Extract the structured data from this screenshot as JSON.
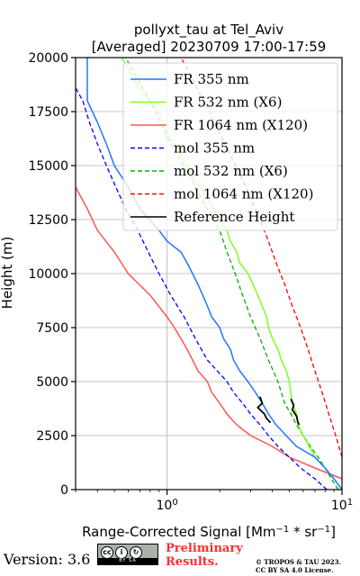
{
  "chart_data": {
    "type": "line",
    "title_line1": "pollyxt_tau at Tel_Aviv",
    "title_line2": "[Averaged] 20230709 17:00-17:59",
    "xlabel": "Range-Corrected Signal [Mm",
    "xlabel_exp1": "−1",
    "xlabel_mid": " * sr",
    "xlabel_exp2": "−1",
    "xlabel_end": "]",
    "ylabel": "Height (m)",
    "xscale": "log",
    "xlim": [
      0.3,
      10
    ],
    "ylim": [
      0,
      20000
    ],
    "yticks": [
      0,
      2500,
      5000,
      7500,
      10000,
      12500,
      15000,
      17500,
      20000
    ],
    "ytick_labels": [
      "0",
      "2500",
      "5000",
      "7500",
      "10000",
      "12500",
      "15000",
      "17500",
      "20000"
    ],
    "xtick_labels": [
      {
        "base": "10",
        "exp": "0",
        "value": 1
      },
      {
        "base": "10",
        "exp": "1",
        "value": 10
      }
    ],
    "grid": true,
    "legend_position": "top-right",
    "series": [
      {
        "name": "FR 355 nm",
        "style": "solid",
        "color": "#1f77ff",
        "points": [
          [
            10,
            0
          ],
          [
            9,
            500
          ],
          [
            8,
            1000
          ],
          [
            7,
            1500
          ],
          [
            5.5,
            2000
          ],
          [
            4.8,
            2500
          ],
          [
            4.2,
            3000
          ],
          [
            3.8,
            3500
          ],
          [
            3.5,
            4000
          ],
          [
            3.2,
            4500
          ],
          [
            2.9,
            5000
          ],
          [
            2.6,
            5500
          ],
          [
            2.4,
            6000
          ],
          [
            2.3,
            6500
          ],
          [
            2.1,
            7000
          ],
          [
            2.0,
            7500
          ],
          [
            1.8,
            8000
          ],
          [
            1.7,
            8500
          ],
          [
            1.6,
            9000
          ],
          [
            1.5,
            9500
          ],
          [
            1.4,
            10000
          ],
          [
            1.3,
            10500
          ],
          [
            1.2,
            11000
          ],
          [
            1.0,
            11500
          ],
          [
            0.9,
            12000
          ],
          [
            0.7,
            13000
          ],
          [
            0.6,
            14000
          ],
          [
            0.5,
            15000
          ],
          [
            0.45,
            16000
          ],
          [
            0.4,
            17000
          ],
          [
            0.35,
            18000
          ],
          [
            0.35,
            19000
          ],
          [
            0.35,
            20000
          ]
        ]
      },
      {
        "name": "FR 532 nm (X6)",
        "style": "solid",
        "color": "#7dff1f",
        "points": [
          [
            9,
            500
          ],
          [
            8,
            1000
          ],
          [
            7,
            1500
          ],
          [
            6.5,
            2000
          ],
          [
            6,
            2500
          ],
          [
            5.6,
            3000
          ],
          [
            5.5,
            3500
          ],
          [
            5.2,
            4000
          ],
          [
            5,
            5000
          ],
          [
            4.8,
            5500
          ],
          [
            4.5,
            6000
          ],
          [
            4.3,
            6500
          ],
          [
            4.0,
            7000
          ],
          [
            3.8,
            7500
          ],
          [
            3.7,
            8000
          ],
          [
            3.5,
            8500
          ],
          [
            3.3,
            9000
          ],
          [
            3.1,
            9500
          ],
          [
            2.9,
            10000
          ],
          [
            2.6,
            10500
          ],
          [
            2.5,
            11000
          ],
          [
            2.3,
            11500
          ],
          [
            2.2,
            12000
          ],
          [
            2.0,
            12500
          ],
          [
            1.7,
            13500
          ],
          [
            1.4,
            14500
          ],
          [
            1.2,
            15500
          ],
          [
            1.0,
            16500
          ],
          [
            0.9,
            17500
          ],
          [
            0.7,
            18500
          ],
          [
            0.6,
            19500
          ],
          [
            0.55,
            20000
          ]
        ]
      },
      {
        "name": "FR 1064 nm (X120)",
        "style": "solid",
        "color": "#ff5555",
        "points": [
          [
            10,
            500
          ],
          [
            7,
            1000
          ],
          [
            5,
            1500
          ],
          [
            4,
            2000
          ],
          [
            3,
            2500
          ],
          [
            2.5,
            3000
          ],
          [
            2.2,
            3500
          ],
          [
            2.0,
            4000
          ],
          [
            1.8,
            4500
          ],
          [
            1.7,
            5000
          ],
          [
            1.5,
            5500
          ],
          [
            1.4,
            6000
          ],
          [
            1.3,
            6500
          ],
          [
            1.2,
            7000
          ],
          [
            1.1,
            7500
          ],
          [
            1.0,
            8000
          ],
          [
            0.8,
            9000
          ],
          [
            0.6,
            10000
          ],
          [
            0.5,
            11000
          ],
          [
            0.4,
            12000
          ],
          [
            0.35,
            13000
          ],
          [
            0.3,
            14000
          ]
        ]
      },
      {
        "name": "mol 355 nm",
        "style": "dashed",
        "color": "#0000ff",
        "points": [
          [
            8.2,
            0
          ],
          [
            7,
            500
          ],
          [
            5.8,
            1000
          ],
          [
            5,
            1500
          ],
          [
            4.3,
            2000
          ],
          [
            3.8,
            2500
          ],
          [
            3.4,
            3000
          ],
          [
            3.0,
            3500
          ],
          [
            2.7,
            4000
          ],
          [
            2.4,
            4500
          ],
          [
            2.2,
            5000
          ],
          [
            1.7,
            6000
          ],
          [
            1.45,
            7000
          ],
          [
            1.25,
            8000
          ],
          [
            1.05,
            9000
          ],
          [
            0.9,
            10000
          ],
          [
            0.78,
            11000
          ],
          [
            0.68,
            12000
          ],
          [
            0.58,
            13000
          ],
          [
            0.51,
            14000
          ],
          [
            0.45,
            15000
          ],
          [
            0.4,
            16000
          ],
          [
            0.36,
            17000
          ],
          [
            0.33,
            18000
          ],
          [
            0.3,
            18600
          ]
        ]
      },
      {
        "name": "mol 532 nm (X6)",
        "style": "dashed",
        "color": "#00b000",
        "points": [
          [
            9.5,
            0
          ],
          [
            8.7,
            500
          ],
          [
            8,
            1000
          ],
          [
            7.3,
            1500
          ],
          [
            6.6,
            2000
          ],
          [
            6,
            2500
          ],
          [
            5.5,
            3000
          ],
          [
            5.1,
            3500
          ],
          [
            4.7,
            4000
          ],
          [
            4.3,
            5000
          ],
          [
            3.8,
            6000
          ],
          [
            3.4,
            7000
          ],
          [
            3.0,
            8000
          ],
          [
            2.7,
            9000
          ],
          [
            2.45,
            10000
          ],
          [
            2.2,
            11000
          ],
          [
            2.0,
            12000
          ],
          [
            1.7,
            13000
          ],
          [
            1.45,
            14000
          ],
          [
            1.25,
            15000
          ],
          [
            1.05,
            16000
          ],
          [
            0.92,
            17000
          ],
          [
            0.8,
            18000
          ],
          [
            0.68,
            19000
          ],
          [
            0.58,
            20000
          ]
        ]
      },
      {
        "name": "mol 1064 nm (X120)",
        "style": "dashed",
        "color": "#ff0000",
        "points": [
          [
            10,
            1500
          ],
          [
            9.2,
            2500
          ],
          [
            8.4,
            3500
          ],
          [
            7.7,
            4500
          ],
          [
            7.0,
            5500
          ],
          [
            6.4,
            6500
          ],
          [
            5.8,
            7500
          ],
          [
            5.2,
            8500
          ],
          [
            4.7,
            9500
          ],
          [
            4.2,
            10500
          ],
          [
            3.8,
            11500
          ],
          [
            3.4,
            12500
          ],
          [
            3.0,
            13500
          ],
          [
            2.65,
            14500
          ],
          [
            2.3,
            15500
          ],
          [
            2.0,
            16500
          ],
          [
            1.75,
            17500
          ],
          [
            1.5,
            18500
          ],
          [
            1.3,
            19500
          ],
          [
            1.2,
            20000
          ]
        ]
      },
      {
        "name": "Reference Height",
        "style": "solid",
        "color": "#000000",
        "segments": [
          [
            [
              3.4,
              4300
            ],
            [
              3.5,
              4000
            ],
            [
              3.3,
              3800
            ],
            [
              3.6,
              3500
            ],
            [
              3.7,
              3300
            ],
            [
              3.9,
              3100
            ]
          ],
          [
            [
              5.1,
              4200
            ],
            [
              5.3,
              3900
            ],
            [
              5.2,
              3700
            ],
            [
              5.5,
              3400
            ],
            [
              5.6,
              3100
            ],
            [
              5.7,
              3000
            ]
          ]
        ]
      }
    ]
  },
  "footer": {
    "version": "Version: 3.6",
    "cc_badge": "BY SA",
    "preliminary_line1": "Preliminary",
    "preliminary_line2": "Results.",
    "copyright_line1": "© TROPOS & TAU 2023.",
    "copyright_line2": "CC BY SA 4.0 License."
  }
}
